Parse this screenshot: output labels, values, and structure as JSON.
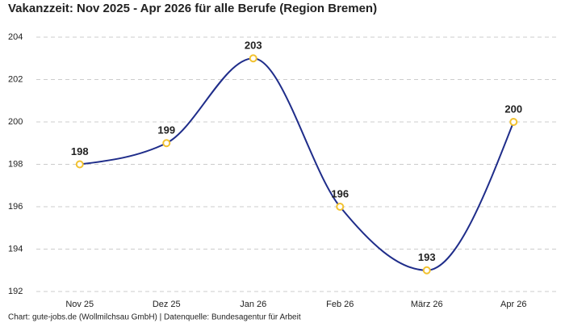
{
  "chart_data": {
    "type": "line",
    "title": "Vakanzzeit: Nov 2025 - Apr 2026 für alle Berufe (Region Bremen)",
    "categories": [
      "Nov 25",
      "Dez 25",
      "Jan 26",
      "Feb 26",
      "März 26",
      "Apr 26"
    ],
    "series": [
      {
        "name": "Vakanzzeit",
        "color": "#1f2d8a",
        "marker_color": "#f2c230",
        "values": [
          198,
          199,
          203,
          196,
          193,
          200
        ]
      }
    ],
    "ylim": [
      192,
      204
    ],
    "yticks": [
      192,
      194,
      196,
      198,
      200,
      202,
      204
    ],
    "grid": true,
    "source": "Chart: gute-jobs.de (Wollmilchsau GmbH) | Datenquelle: Bundesagentur für Arbeit"
  }
}
